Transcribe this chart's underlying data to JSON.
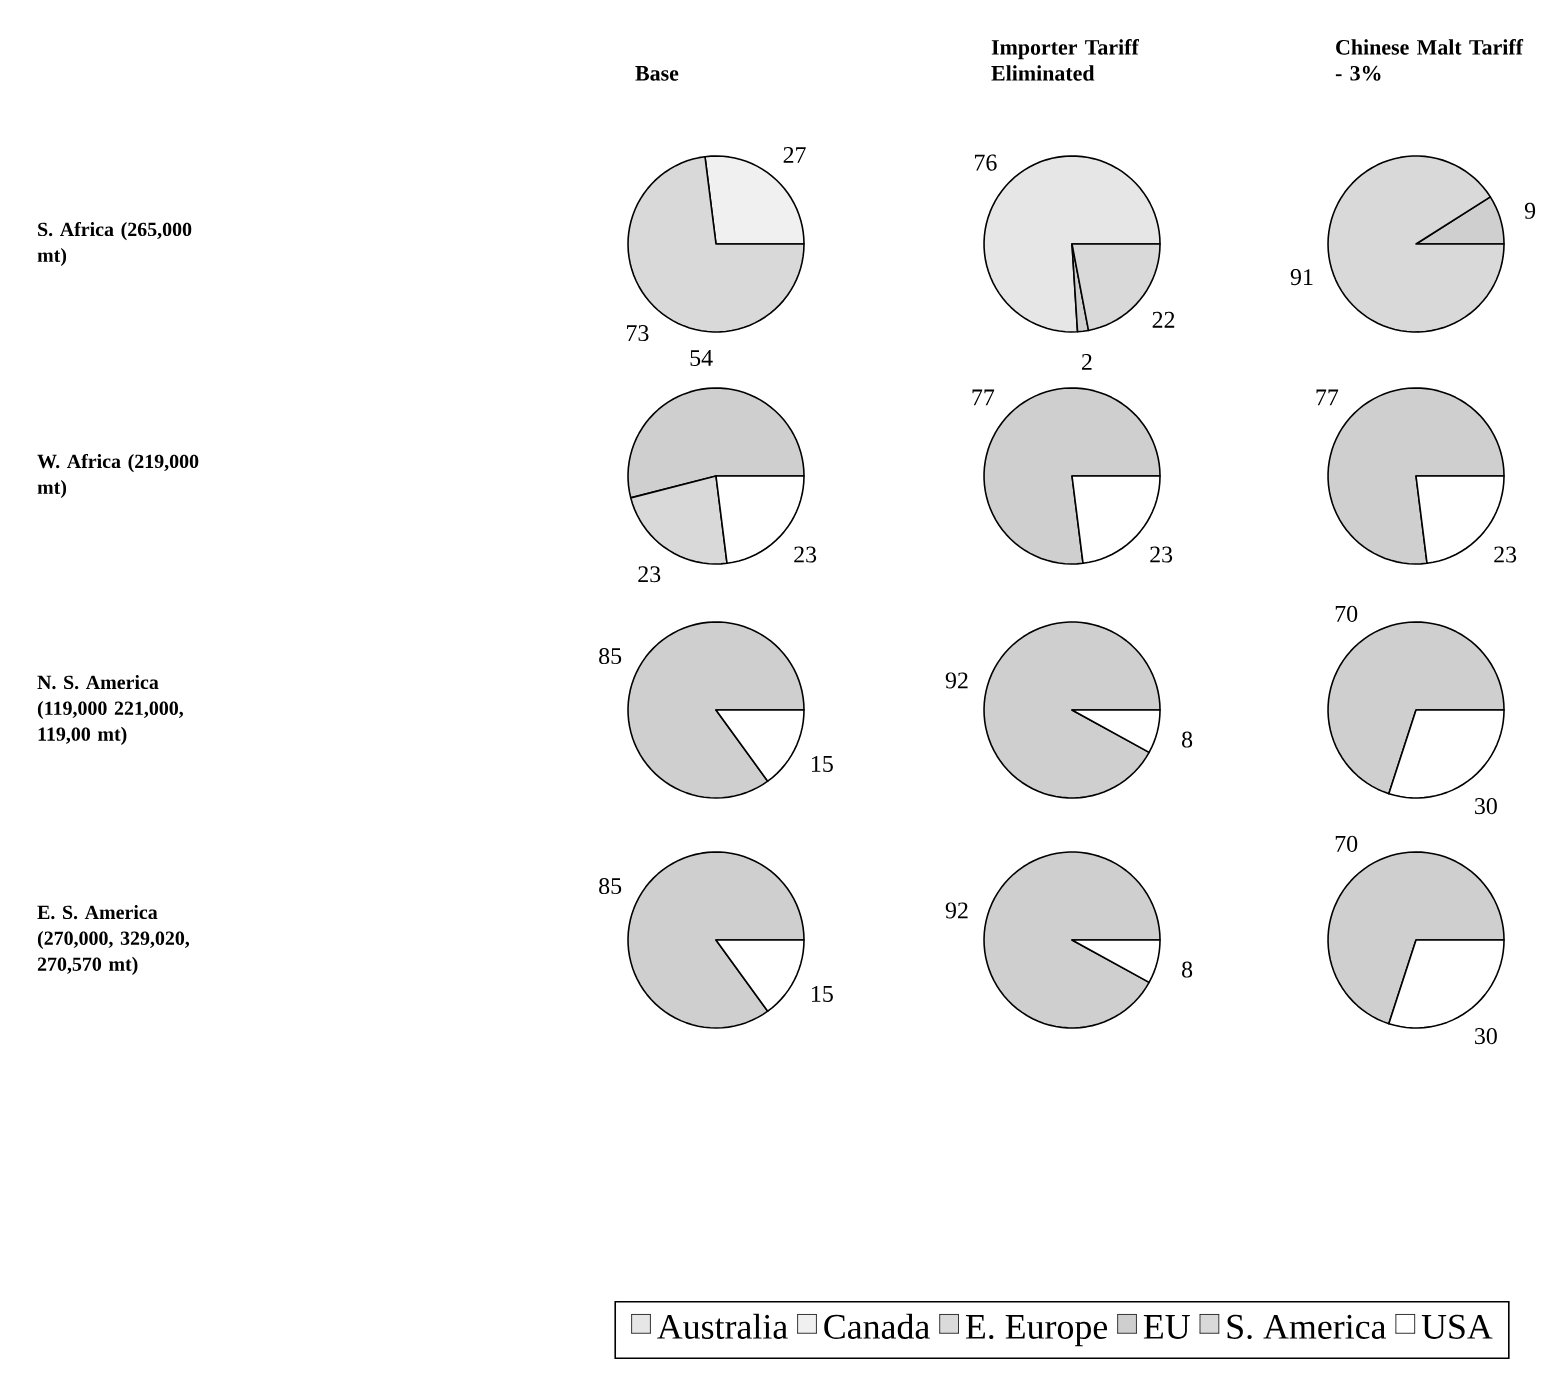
{
  "chart_data": [
    {
      "type": "pie",
      "title": "Base",
      "ylabel": "S. Africa (265,000 mt)",
      "categories": [
        "Australia",
        "Canada",
        "E. Europe",
        "EU",
        "S. America",
        "USA"
      ],
      "values": [
        null,
        27,
        null,
        null,
        73,
        null
      ],
      "colors": [
        "#e6e6e6",
        "#f0f0f0",
        "#dadada",
        "#cfcfcf",
        "#d9d9d9",
        "#ffffff"
      ],
      "data_labels": true,
      "legend": "bottom"
    },
    {
      "type": "pie",
      "title": "Importer Tariff Eliminated",
      "values": [
        76,
        null,
        null,
        2,
        22,
        null
      ],
      "colors": [
        "#e6e6e6",
        "#f0f0f0",
        "#dadada",
        "#cfcfcf",
        "#d9d9d9",
        "#ffffff"
      ],
      "data_labels": true
    },
    {
      "type": "pie",
      "title": "Chinese Malt Tariff - 3%",
      "values": [
        null,
        null,
        null,
        9,
        91,
        null
      ],
      "colors": [
        "#e6e6e6",
        "#f0f0f0",
        "#dadada",
        "#cfcfcf",
        "#d9d9d9",
        "#ffffff"
      ],
      "data_labels": true
    },
    {
      "type": "pie",
      "ylabel": "W. Africa (219,000 mt)",
      "values": [
        null,
        null,
        null,
        54,
        23,
        23
      ],
      "colors": [
        "#e6e6e6",
        "#f0f0f0",
        "#dadada",
        "#cfcfcf",
        "#d9d9d9",
        "#ffffff"
      ],
      "data_labels": true
    },
    {
      "type": "pie",
      "values": [
        null,
        null,
        null,
        77,
        null,
        23
      ],
      "colors": [
        "#e6e6e6",
        "#f0f0f0",
        "#dadada",
        "#cfcfcf",
        "#d9d9d9",
        "#ffffff"
      ],
      "data_labels": true
    },
    {
      "type": "pie",
      "values": [
        null,
        null,
        null,
        77,
        null,
        23
      ],
      "colors": [
        "#e6e6e6",
        "#f0f0f0",
        "#dadada",
        "#cfcfcf",
        "#d9d9d9",
        "#ffffff"
      ],
      "data_labels": true
    },
    {
      "type": "pie",
      "ylabel": "N. S. America (119,000 221,000, 119,00 mt)",
      "values": [
        null,
        null,
        null,
        85,
        null,
        15
      ],
      "colors": [
        "#e6e6e6",
        "#f0f0f0",
        "#dadada",
        "#cfcfcf",
        "#d9d9d9",
        "#ffffff"
      ],
      "data_labels": true
    },
    {
      "type": "pie",
      "values": [
        null,
        null,
        null,
        92,
        null,
        8
      ],
      "colors": [
        "#e6e6e6",
        "#f0f0f0",
        "#dadada",
        "#cfcfcf",
        "#d9d9d9",
        "#ffffff"
      ],
      "data_labels": true
    },
    {
      "type": "pie",
      "values": [
        null,
        null,
        null,
        70,
        null,
        30
      ],
      "colors": [
        "#e6e6e6",
        "#f0f0f0",
        "#dadada",
        "#cfcfcf",
        "#d9d9d9",
        "#ffffff"
      ],
      "data_labels": true
    },
    {
      "type": "pie",
      "ylabel": "E. S. America (270,000, 329,020, 270,570 mt)",
      "values": [
        null,
        null,
        null,
        85,
        null,
        15
      ],
      "colors": [
        "#e6e6e6",
        "#f0f0f0",
        "#dadada",
        "#cfcfcf",
        "#d9d9d9",
        "#ffffff"
      ],
      "data_labels": true
    },
    {
      "type": "pie",
      "values": [
        null,
        null,
        null,
        92,
        null,
        8
      ],
      "colors": [
        "#e6e6e6",
        "#f0f0f0",
        "#dadada",
        "#cfcfcf",
        "#d9d9d9",
        "#ffffff"
      ],
      "data_labels": true
    },
    {
      "type": "pie",
      "values": [
        null,
        null,
        null,
        70,
        null,
        30
      ],
      "colors": [
        "#e6e6e6",
        "#f0f0f0",
        "#dadada",
        "#cfcfcf",
        "#d9d9d9",
        "#ffffff"
      ],
      "data_labels": true
    }
  ]
}
